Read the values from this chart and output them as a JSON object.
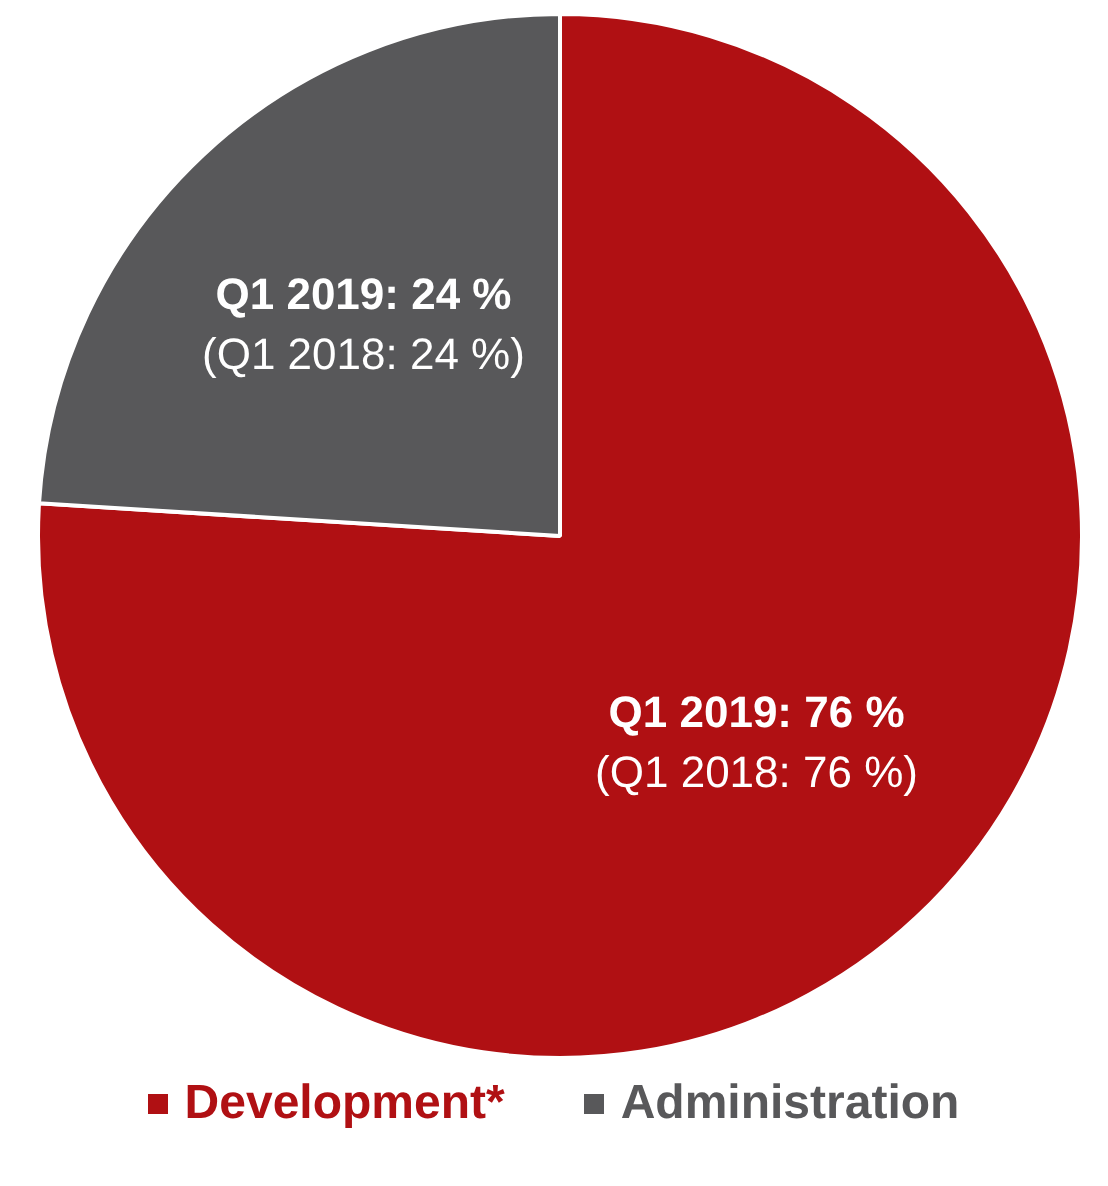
{
  "chart_data": {
    "type": "pie",
    "categories": [
      "Development*",
      "Administration"
    ],
    "values": [
      76,
      24
    ],
    "colors": [
      "#b01013",
      "#58585a"
    ],
    "value_labels": [
      "Q1 2019: 76 %",
      "Q1 2019: 24 %"
    ],
    "annotations": [
      {
        "text": "(Q1 2018: 76 %)",
        "x": "Development*"
      },
      {
        "text": "(Q1 2018: 24 %)",
        "x": "Administration"
      }
    ],
    "legend": "bottom"
  }
}
